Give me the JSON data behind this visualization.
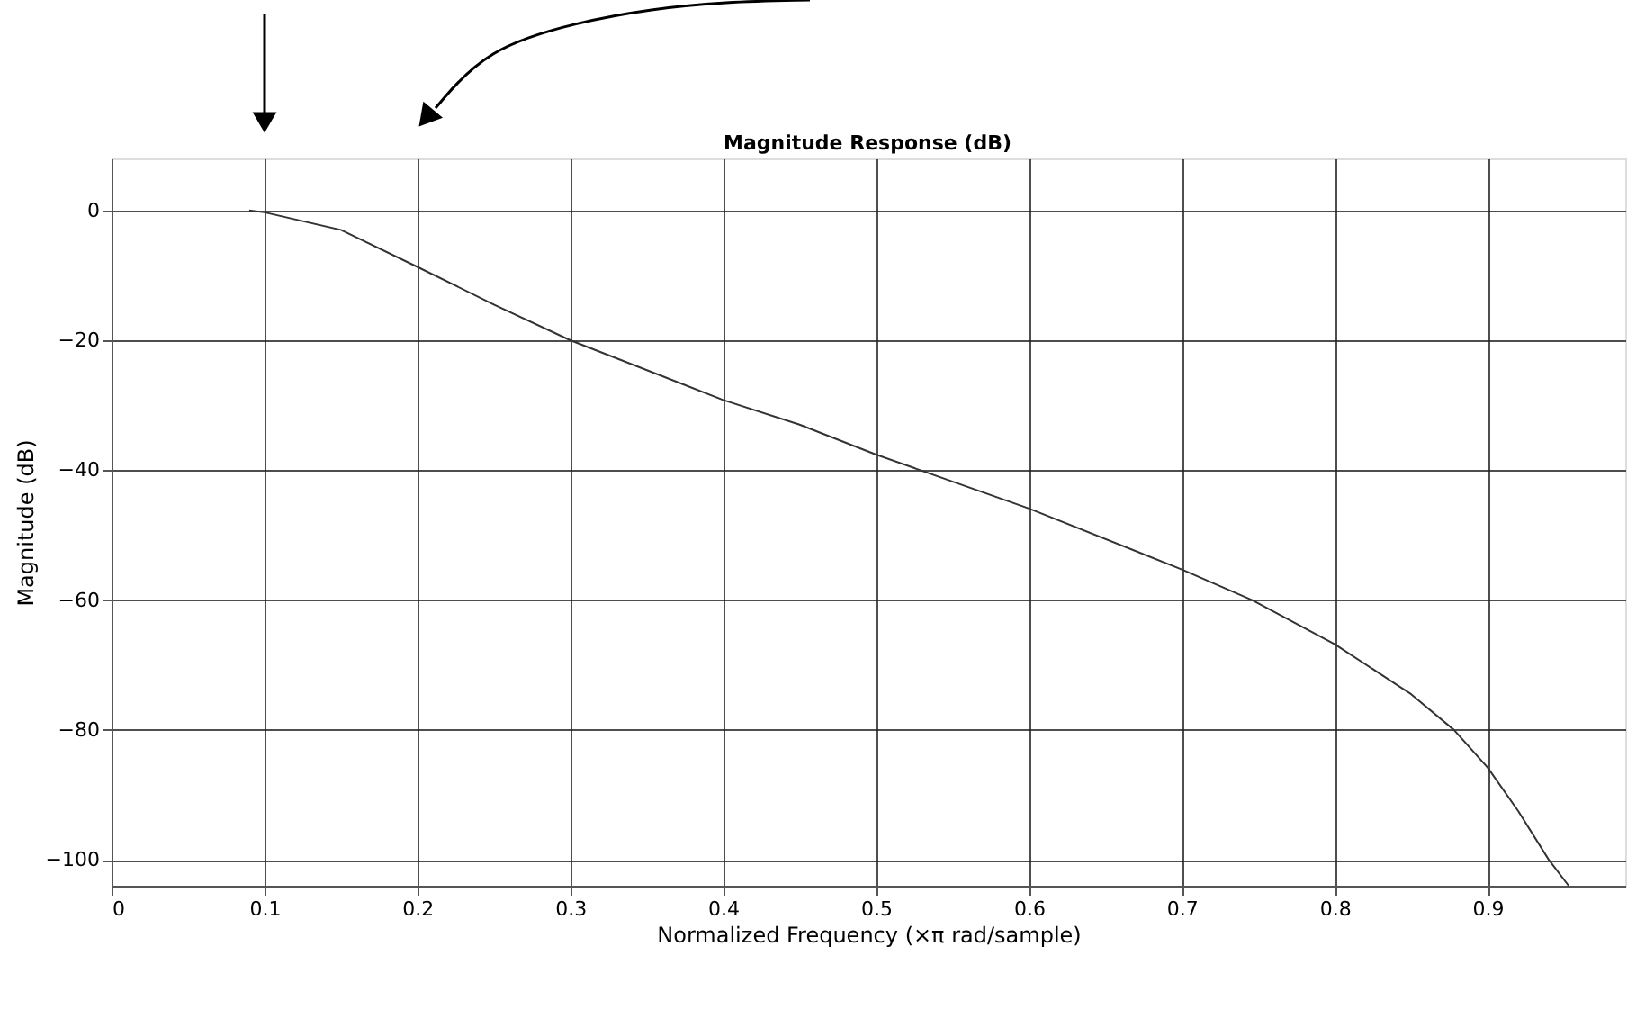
{
  "chart_data": {
    "type": "line",
    "title": "Magnitude Response (dB)",
    "xlabel": "Normalized Frequency (×π rad/sample)",
    "ylabel": "Magnitude (dB)",
    "x": [
      0.09,
      0.1,
      0.15,
      0.2,
      0.25,
      0.3,
      0.4,
      0.45,
      0.5,
      0.6,
      0.7,
      0.746,
      0.8,
      0.85,
      0.878,
      0.9,
      0.92,
      0.94,
      0.953
    ],
    "series": [
      {
        "color": "#333333",
        "values": [
          0,
          -0.3,
          -3,
          -8.7,
          -14.5,
          -20,
          -29.2,
          -33,
          -37.6,
          -45.9,
          -55.3,
          -60,
          -66.8,
          -74.5,
          -80,
          -85.8,
          -92.5,
          -100,
          -104
        ]
      }
    ],
    "xlim": [
      0,
      0.99
    ],
    "ylim": [
      -104,
      8
    ],
    "xticks": [
      0,
      0.1,
      0.2,
      0.3,
      0.4,
      0.5,
      0.6,
      0.7,
      0.8,
      0.9
    ],
    "yticks": [
      -100,
      -80,
      -60,
      -40,
      -20,
      0
    ],
    "grid": true
  }
}
